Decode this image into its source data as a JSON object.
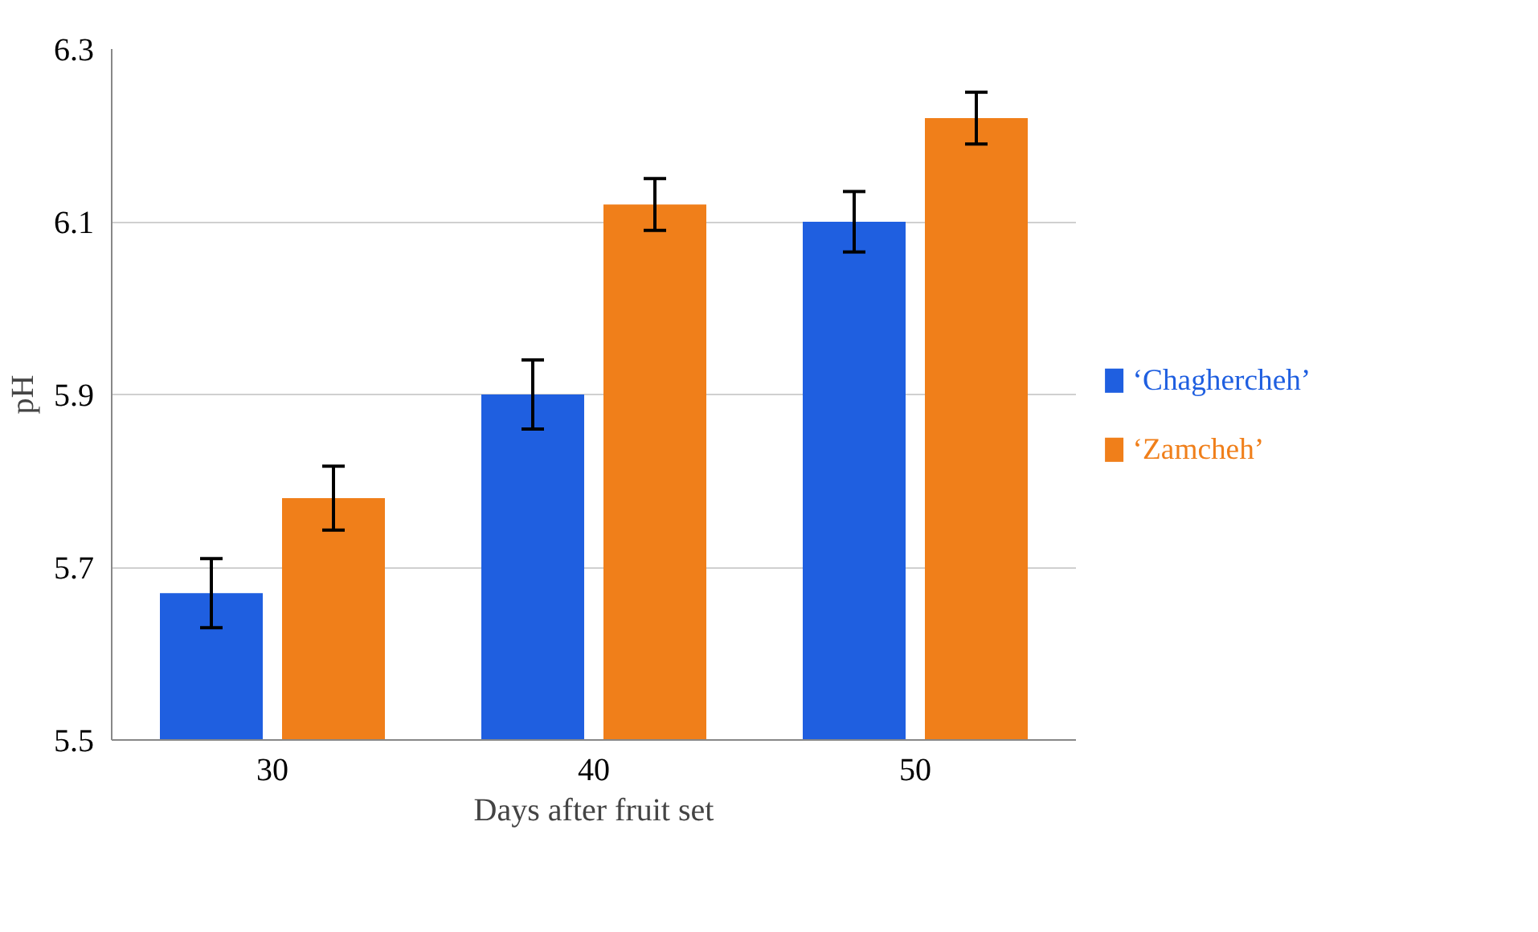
{
  "chart_data": {
    "type": "bar",
    "xlabel": "Days after fruit set",
    "ylabel": "pH",
    "categories": [
      "30",
      "40",
      "50"
    ],
    "series": [
      {
        "name": "‘Chaghercheh’",
        "color": "#1f5fe0",
        "values": [
          5.67,
          5.9,
          6.1
        ],
        "errors": [
          0.04,
          0.04,
          0.035
        ]
      },
      {
        "name": "‘Zamcheh’",
        "color": "#f07f1a",
        "values": [
          5.78,
          6.12,
          6.22
        ],
        "errors": [
          0.037,
          0.03,
          0.03
        ]
      }
    ],
    "ylim": [
      5.5,
      6.3
    ],
    "yticks": [
      5.5,
      5.7,
      5.9,
      6.1,
      6.3
    ],
    "grid": "y",
    "legend": "right"
  }
}
